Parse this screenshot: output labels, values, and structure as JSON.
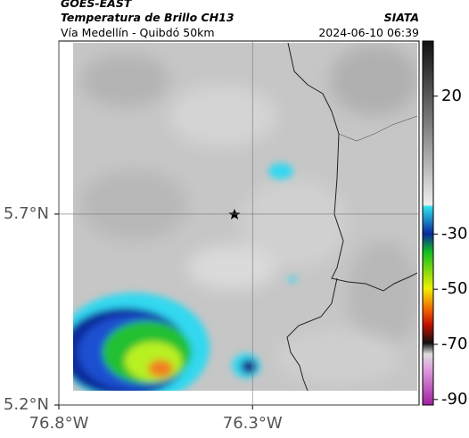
{
  "header": {
    "title": "GOES-EAST",
    "subtitle": "Temperatura de Brillo CH13",
    "route": "Vía Medellín - Quibdó 50km",
    "source": "SIATA",
    "timestamp": "2024-06-10 06:39"
  },
  "map": {
    "xlim": [
      -76.8,
      -75.87
    ],
    "ylim": [
      5.2,
      6.153
    ],
    "xticks": [
      {
        "value": -76.8,
        "label": "76.8°W"
      },
      {
        "value": -76.3,
        "label": "76.3°W"
      }
    ],
    "yticks": [
      {
        "value": 5.7,
        "label": "5.7°N"
      },
      {
        "value": 5.2,
        "label": "5.2°N"
      }
    ],
    "grid": true
  },
  "colorbar": {
    "lim": [
      -92,
      40
    ],
    "ticks": [
      20,
      -30,
      -50,
      -70,
      -90
    ]
  }
}
